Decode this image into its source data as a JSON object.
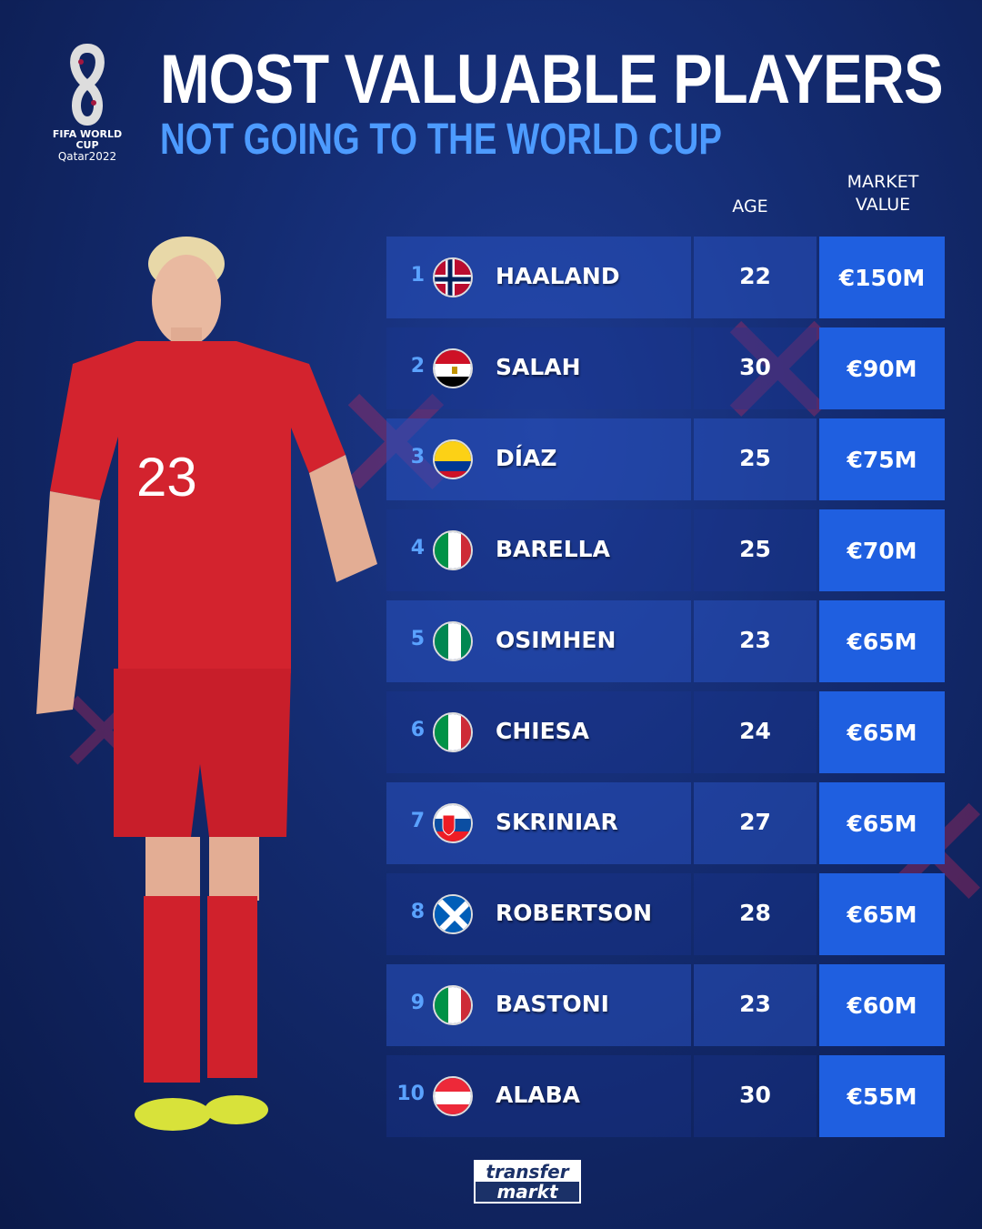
{
  "logo": {
    "line1": "FIFA WORLD CUP",
    "line2": "Qatar2022"
  },
  "header": {
    "title": "MOST VALUABLE PLAYERS",
    "subtitle": "NOT GOING TO THE WORLD CUP"
  },
  "columns": {
    "age": "AGE",
    "market_value_1": "MARKET",
    "market_value_2": "VALUE"
  },
  "players": [
    {
      "rank": "1",
      "name": "HAALAND",
      "age": "22",
      "value": "€150M",
      "flag": "norway"
    },
    {
      "rank": "2",
      "name": "SALAH",
      "age": "30",
      "value": "€90M",
      "flag": "egypt"
    },
    {
      "rank": "3",
      "name": "DÍAZ",
      "age": "25",
      "value": "€75M",
      "flag": "colombia"
    },
    {
      "rank": "4",
      "name": "BARELLA",
      "age": "25",
      "value": "€70M",
      "flag": "italy"
    },
    {
      "rank": "5",
      "name": "OSIMHEN",
      "age": "23",
      "value": "€65M",
      "flag": "nigeria"
    },
    {
      "rank": "6",
      "name": "CHIESA",
      "age": "24",
      "value": "€65M",
      "flag": "italy"
    },
    {
      "rank": "7",
      "name": "SKRINIAR",
      "age": "27",
      "value": "€65M",
      "flag": "slovakia"
    },
    {
      "rank": "8",
      "name": "ROBERTSON",
      "age": "28",
      "value": "€65M",
      "flag": "scotland"
    },
    {
      "rank": "9",
      "name": "BASTONI",
      "age": "23",
      "value": "€60M",
      "flag": "italy"
    },
    {
      "rank": "10",
      "name": "ALABA",
      "age": "30",
      "value": "€55M",
      "flag": "austria"
    }
  ],
  "player_photo": {
    "shirt_number": "23"
  },
  "brand": {
    "line1": "transfer",
    "line2": "markt"
  },
  "colors": {
    "accent": "#4d9bff",
    "value_cell": "#1f5fe0",
    "background": "#142c72"
  }
}
